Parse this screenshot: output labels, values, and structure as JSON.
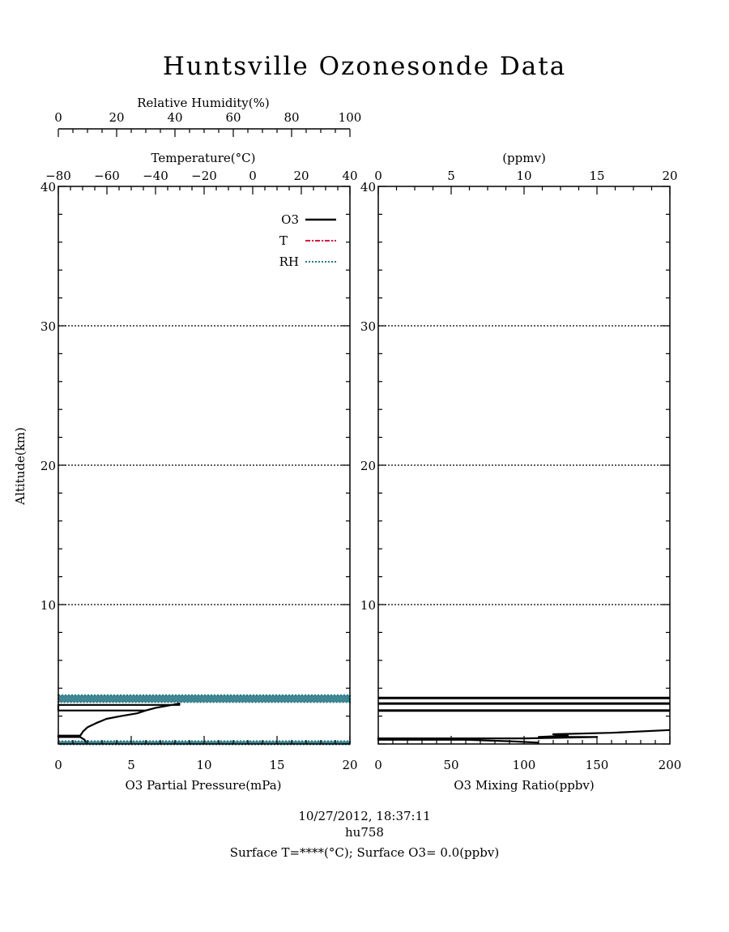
{
  "title": "Huntsville Ozonesonde Data",
  "footer": {
    "datetime": "10/27/2012, 18:37:11",
    "id": "hu758",
    "surface": "Surface T=****(°C); Surface O3= 0.0(ppbv)"
  },
  "colors": {
    "o3": "#000000",
    "t": "#e8003d",
    "rh": "#2a7a86"
  },
  "chart_data": [
    {
      "type": "line",
      "ylabel": "Altitude(km)",
      "ylim": [
        0,
        40
      ],
      "yticks": [
        "10",
        "20",
        "30",
        "40"
      ],
      "grid_y": [
        10,
        20,
        30
      ],
      "axes": {
        "bottom": {
          "label": "O3 Partial Pressure(mPa)",
          "range": [
            0,
            20
          ],
          "ticks": [
            "0",
            "5",
            "10",
            "15",
            "20"
          ]
        },
        "top_inner": {
          "label": "Temperature(°C)",
          "range": [
            -80,
            40
          ],
          "ticks": [
            "−80",
            "−60",
            "−40",
            "−20",
            "0",
            "20",
            "40"
          ]
        },
        "top_outer": {
          "label": "Relative Humidity(%)",
          "range": [
            0,
            100
          ],
          "ticks": [
            "0",
            "20",
            "40",
            "60",
            "80",
            "100"
          ]
        }
      },
      "legend": {
        "placement": "top-right",
        "entries": [
          "O3",
          "T",
          "RH"
        ]
      },
      "series": [
        {
          "name": "O3",
          "axis": "bottom",
          "points": [
            [
              1.9,
              0.1
            ],
            [
              1.8,
              0.3
            ],
            [
              1.5,
              0.5
            ],
            [
              0.0,
              0.5
            ],
            [
              0.0,
              0.6
            ],
            [
              1.5,
              0.6
            ],
            [
              1.7,
              0.9
            ],
            [
              2.0,
              1.2
            ],
            [
              2.6,
              1.5
            ],
            [
              3.3,
              1.8
            ],
            [
              4.3,
              2.0
            ],
            [
              5.4,
              2.2
            ],
            [
              6.0,
              2.4
            ],
            [
              6.7,
              2.6
            ],
            [
              7.8,
              2.8
            ],
            [
              8.3,
              2.9
            ],
            [
              8.3,
              2.8
            ],
            [
              0.0,
              2.8
            ],
            [
              0.0,
              2.4
            ],
            [
              6.0,
              2.4
            ]
          ]
        },
        {
          "name": "RH",
          "axis": "top_outer",
          "bands": [
            [
              3.0,
              3.5
            ],
            [
              0.1,
              0.2
            ]
          ],
          "x_range": [
            0,
            100
          ]
        }
      ]
    },
    {
      "type": "line",
      "ylim": [
        0,
        40
      ],
      "yticks": [
        "10",
        "20",
        "30",
        "40"
      ],
      "grid_y": [
        10,
        20,
        30
      ],
      "axes": {
        "bottom": {
          "label": "O3 Mixing Ratio(ppbv)",
          "range": [
            0,
            200
          ],
          "ticks": [
            "0",
            "50",
            "100",
            "150",
            "200"
          ]
        },
        "top": {
          "label": "(ppmv)",
          "range": [
            0,
            20
          ],
          "ticks": [
            "0",
            "5",
            "10",
            "15",
            "20"
          ]
        }
      },
      "series": [
        {
          "name": "O3",
          "axis": "bottom",
          "hlines": [
            3.3,
            2.9,
            2.4
          ],
          "points": [
            [
              110,
              0.1
            ],
            [
              90,
              0.2
            ],
            [
              60,
              0.3
            ],
            [
              0,
              0.3
            ],
            [
              0,
              0.4
            ],
            [
              100,
              0.4
            ],
            [
              150,
              0.5
            ],
            [
              110,
              0.5
            ],
            [
              130,
              0.6
            ],
            [
              120,
              0.7
            ],
            [
              160,
              0.8
            ],
            [
              200,
              1.0
            ]
          ]
        }
      ]
    }
  ]
}
